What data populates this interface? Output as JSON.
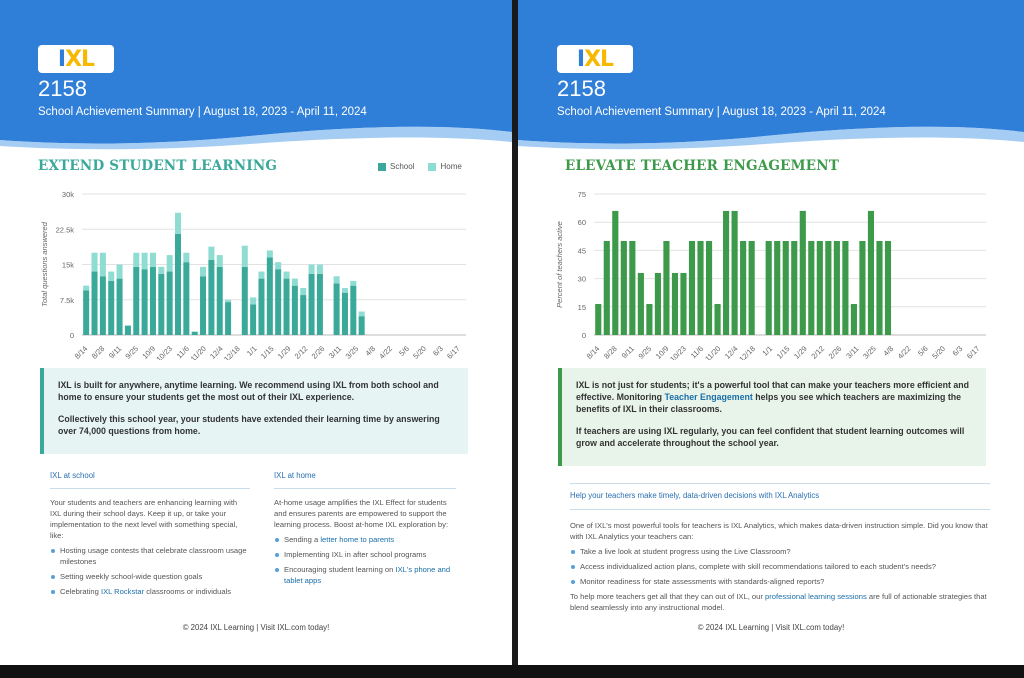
{
  "left": {
    "school_id": "2158",
    "subtitle": "School Achievement Summary | August 18, 2023 - April 11, 2024",
    "section_title": "EXTEND STUDENT LEARNING",
    "legend": {
      "school": "School",
      "home": "Home"
    },
    "callout": {
      "p1": "IXL is built for anywhere, anytime learning. We recommend using IXL from both school and home to ensure your students get the most out of their IXL experience.",
      "p2": "Collectively this school year, your students have extended their learning time by answering over 74,000 questions from home."
    },
    "col_school": {
      "heading": "IXL at school",
      "body": "Your students and teachers are enhancing learning with IXL during their school days. Keep it up, or take your implementation to the next level with something special, like:",
      "bullets": [
        {
          "text": "Hosting usage contests that celebrate classroom usage milestones"
        },
        {
          "text": "Setting weekly school-wide question goals"
        },
        {
          "pre": "Celebrating ",
          "link": "IXL Rockstar",
          "post": " classrooms or individuals"
        }
      ]
    },
    "col_home": {
      "heading": "IXL at home",
      "body": "At-home usage amplifies the IXL Effect for students and ensures parents are empowered to support the learning process. Boost at-home IXL exploration by:",
      "bullets": [
        {
          "pre": "Sending a ",
          "link": "letter home to parents",
          "post": ""
        },
        {
          "text": "Implementing IXL in after school programs"
        },
        {
          "pre": "Encouraging student learning on ",
          "link": "IXL's phone and tablet apps",
          "post": ""
        }
      ]
    },
    "footer": "© 2024 IXL Learning | Visit IXL.com today!"
  },
  "right": {
    "school_id": "2158",
    "subtitle": "School Achievement Summary | August 18, 2023 - April 11, 2024",
    "section_title": "ELEVATE TEACHER ENGAGEMENT",
    "callout": {
      "p1_pre": "IXL is not just for students; it's a powerful tool that can make your teachers more efficient and effective. Monitoring ",
      "p1_link": "Teacher Engagement",
      "p1_post": " helps you see which teachers are maximizing the benefits of IXL in their classrooms.",
      "p2": "If teachers are using IXL regularly, you can feel confident that student learning outcomes will grow and accelerate throughout the school year."
    },
    "analytics": {
      "heading": "Help your teachers make timely, data-driven decisions with IXL Analytics",
      "intro": "One of IXL's most powerful tools for teachers is IXL Analytics, which makes data-driven instruction simple. Did you know that with IXL Analytics your teachers can:",
      "bullets": [
        "Take a live look at student progress using the Live Classroom?",
        "Access individualized action plans, complete with skill recommendations tailored to each student's needs?",
        "Monitor readiness for state assessments with standards-aligned reports?"
      ],
      "closing_pre": "To help more teachers get all that they can out of IXL, our ",
      "closing_link": "professional learning sessions",
      "closing_post": " are full of actionable strategies that blend seamlessly into any instructional model."
    },
    "footer": "© 2024 IXL Learning | Visit IXL.com today!"
  },
  "logo": {
    "i": "I",
    "xl": "XL"
  },
  "colors": {
    "header_blue": "#2f7ed8",
    "school_teal": "#3aa99a",
    "home_teal": "#8fdcd2",
    "teacher_green": "#3d9a4a"
  },
  "chart_data": [
    {
      "type": "bar",
      "stacked": true,
      "ylabel": "Total questions answered",
      "ylim": [
        0,
        30000
      ],
      "yticks": [
        "0",
        "7.5k",
        "15k",
        "22.5k",
        "30k"
      ],
      "xtick_labels": [
        "8/14",
        "8/28",
        "9/11",
        "9/25",
        "10/9",
        "10/23",
        "11/6",
        "11/20",
        "12/4",
        "12/18",
        "1/1",
        "1/15",
        "1/29",
        "2/12",
        "2/26",
        "3/11",
        "3/25",
        "4/8",
        "4/22",
        "5/6",
        "5/20",
        "6/3",
        "6/17"
      ],
      "series": [
        {
          "name": "School",
          "values": [
            9500,
            13500,
            12500,
            11500,
            12000,
            2000,
            14500,
            14000,
            14500,
            13000,
            13500,
            21500,
            15500,
            700,
            12500,
            16000,
            14500,
            7000,
            0,
            14500,
            6500,
            12000,
            16500,
            14000,
            12000,
            10500,
            8500,
            13000,
            13000,
            0,
            11000,
            9000,
            10500,
            4000,
            0,
            0,
            0,
            0,
            0,
            0,
            0,
            0,
            0,
            0,
            0,
            0
          ]
        },
        {
          "name": "Home",
          "values": [
            1000,
            4000,
            5000,
            2000,
            3000,
            0,
            3000,
            3500,
            3000,
            1500,
            3500,
            4500,
            2000,
            0,
            2000,
            2800,
            2500,
            500,
            0,
            4500,
            1500,
            1500,
            1500,
            1500,
            1500,
            1500,
            1500,
            2000,
            2000,
            0,
            1500,
            1000,
            1000,
            1000,
            0,
            0,
            0,
            0,
            0,
            0,
            0,
            0,
            0,
            0,
            0,
            0
          ]
        }
      ]
    },
    {
      "type": "bar",
      "ylabel": "Percent of teachers active",
      "ylim": [
        0,
        75
      ],
      "yticks": [
        "0",
        "15",
        "30",
        "45",
        "60",
        "75"
      ],
      "xtick_labels": [
        "8/14",
        "8/28",
        "9/11",
        "9/25",
        "10/9",
        "10/23",
        "11/6",
        "11/20",
        "12/4",
        "12/18",
        "1/1",
        "1/15",
        "1/29",
        "2/12",
        "2/26",
        "3/11",
        "3/25",
        "4/8",
        "4/22",
        "5/6",
        "5/20",
        "6/3",
        "6/17"
      ],
      "series": [
        {
          "name": "",
          "values": [
            16.5,
            50,
            66,
            50,
            50,
            33,
            16.5,
            33,
            50,
            33,
            33,
            50,
            50,
            50,
            16.5,
            66,
            66,
            50,
            50,
            0,
            50,
            50,
            50,
            50,
            66,
            50,
            50,
            50,
            50,
            50,
            16.5,
            50,
            66,
            50,
            50,
            0,
            0,
            0,
            0,
            0,
            0,
            0,
            0,
            0,
            0,
            0
          ]
        }
      ]
    }
  ]
}
